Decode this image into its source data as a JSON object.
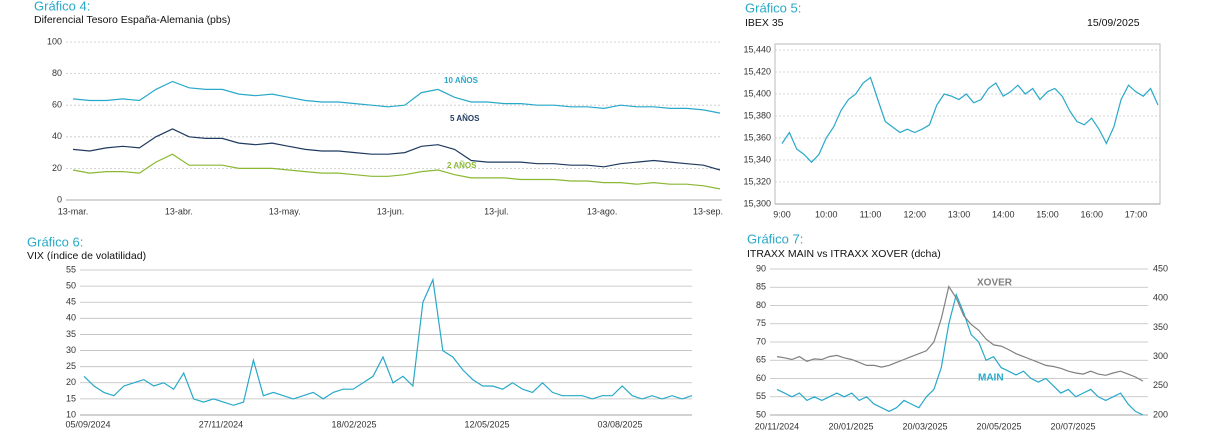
{
  "chart_data": [
    {
      "type": "line",
      "title": "Gráfico 4:",
      "subtitle": "Diferencial Tesoro España-Alemania (pbs)",
      "xticks": [
        "13-mar.",
        "13-abr.",
        "13-may.",
        "13-jun.",
        "13-jul.",
        "13-ago.",
        "13-sep."
      ],
      "ylim": [
        0,
        100
      ],
      "yticks": [
        0,
        20,
        40,
        60,
        80,
        100
      ],
      "grid": true,
      "grid_style": "dashed",
      "series": [
        {
          "name": "10 AÑOS",
          "color": "#29a9c9",
          "values": [
            64,
            63,
            63,
            64,
            63,
            70,
            75,
            71,
            70,
            70,
            67,
            66,
            67,
            65,
            63,
            62,
            62,
            61,
            60,
            59,
            60,
            68,
            70,
            65,
            62,
            62,
            61,
            61,
            60,
            60,
            59,
            59,
            58,
            60,
            59,
            59,
            58,
            58,
            57,
            55
          ]
        },
        {
          "name": "5 AÑOS",
          "color": "#1f3a5f",
          "values": [
            32,
            31,
            33,
            34,
            33,
            40,
            45,
            40,
            39,
            39,
            36,
            35,
            36,
            34,
            32,
            31,
            31,
            30,
            29,
            29,
            30,
            34,
            35,
            32,
            25,
            24,
            24,
            24,
            23,
            23,
            22,
            22,
            21,
            23,
            24,
            25,
            24,
            23,
            22,
            19
          ]
        },
        {
          "name": "2 AÑOS",
          "color": "#8ab833",
          "values": [
            19,
            17,
            18,
            18,
            17,
            24,
            29,
            22,
            22,
            22,
            20,
            20,
            20,
            19,
            18,
            17,
            17,
            16,
            15,
            15,
            16,
            18,
            19,
            16,
            14,
            14,
            14,
            13,
            13,
            13,
            12,
            12,
            11,
            11,
            10,
            11,
            10,
            10,
            9,
            7
          ]
        }
      ]
    },
    {
      "type": "line",
      "title": "Gráfico 5:",
      "subtitle": "IBEX 35",
      "date": "15/09/2025",
      "xticks": [
        "9:00",
        "10:00",
        "11:00",
        "12:00",
        "13:00",
        "14:00",
        "15:00",
        "16:00",
        "17:00"
      ],
      "ylim": [
        15300,
        15440
      ],
      "yticks": [
        {
          "value": 15300,
          "label": "15,300"
        },
        {
          "value": 15320,
          "label": "15,320"
        },
        {
          "value": 15340,
          "label": "15,340"
        },
        {
          "value": 15360,
          "label": "15,360"
        },
        {
          "value": 15380,
          "label": "15,380"
        },
        {
          "value": 15400,
          "label": "15,400"
        },
        {
          "value": 15420,
          "label": "15,420"
        },
        {
          "value": 15440,
          "label": "15,440"
        }
      ],
      "grid": true,
      "grid_style": "dashed",
      "series": [
        {
          "name": "IBEX 35",
          "color": "#29a9c9",
          "values": [
            15355,
            15365,
            15350,
            15345,
            15338,
            15345,
            15360,
            15370,
            15385,
            15395,
            15400,
            15410,
            15415,
            15395,
            15375,
            15370,
            15365,
            15368,
            15365,
            15368,
            15372,
            15390,
            15400,
            15398,
            15395,
            15400,
            15392,
            15395,
            15405,
            15410,
            15398,
            15402,
            15408,
            15400,
            15405,
            15395,
            15402,
            15405,
            15398,
            15385,
            15375,
            15372,
            15378,
            15368,
            15355,
            15370,
            15395,
            15408,
            15402,
            15398,
            15405,
            15390
          ]
        }
      ]
    },
    {
      "type": "line",
      "title": "Gráfico 6:",
      "subtitle": "VIX (índice de volatilidad)",
      "xticks": [
        "05/09/2024",
        "27/11/2024",
        "18/02/2025",
        "12/05/2025",
        "03/08/2025"
      ],
      "ylim": [
        10,
        55
      ],
      "yticks": [
        10,
        15,
        20,
        25,
        30,
        35,
        40,
        45,
        50,
        55
      ],
      "grid": true,
      "grid_style": "solid",
      "series": [
        {
          "name": "VIX",
          "color": "#29a9c9",
          "values": [
            22,
            19,
            17,
            16,
            19,
            20,
            21,
            19,
            20,
            18,
            23,
            15,
            14,
            15,
            14,
            13,
            14,
            27,
            16,
            17,
            16,
            15,
            16,
            17,
            15,
            17,
            18,
            18,
            20,
            22,
            28,
            20,
            22,
            19,
            45,
            52,
            30,
            28,
            24,
            21,
            19,
            19,
            18,
            20,
            18,
            17,
            20,
            17,
            16,
            16,
            16,
            15,
            16,
            16,
            19,
            16,
            15,
            16,
            15,
            16,
            15,
            16
          ]
        }
      ]
    },
    {
      "type": "line",
      "title": "Gráfico 7:",
      "subtitle": "ITRAXX MAIN vs ITRAXX XOVER (dcha)",
      "xticks": [
        "20/11/2024",
        "20/01/2025",
        "20/03/2025",
        "20/05/2025",
        "20/07/2025"
      ],
      "ylim": [
        50,
        90
      ],
      "yticks": [
        50,
        55,
        60,
        65,
        70,
        75,
        80,
        85,
        90
      ],
      "y2lim": [
        200,
        450
      ],
      "y2ticks": [
        200,
        250,
        300,
        350,
        400,
        450
      ],
      "grid": true,
      "grid_style": "solid",
      "series": [
        {
          "name": "MAIN",
          "color": "#29a9c9",
          "values": [
            57,
            56,
            55,
            56,
            54,
            55,
            54,
            55,
            56,
            55,
            56,
            54,
            55,
            53,
            52,
            51,
            52,
            54,
            53,
            52,
            55,
            57,
            63,
            75,
            83,
            78,
            72,
            70,
            65,
            66,
            63,
            62,
            61,
            62,
            60,
            59,
            60,
            58,
            56,
            57,
            55,
            56,
            57,
            55,
            54,
            55,
            56,
            53,
            51,
            50
          ]
        },
        {
          "name": "XOVER",
          "color": "#808080",
          "axis": "y2",
          "values": [
            300,
            298,
            295,
            300,
            292,
            296,
            295,
            300,
            302,
            298,
            295,
            290,
            285,
            285,
            282,
            285,
            290,
            295,
            300,
            305,
            310,
            325,
            365,
            420,
            400,
            370,
            355,
            345,
            330,
            320,
            318,
            312,
            305,
            300,
            295,
            290,
            285,
            283,
            280,
            275,
            272,
            270,
            275,
            270,
            268,
            272,
            275,
            270,
            265,
            258
          ]
        }
      ]
    }
  ]
}
